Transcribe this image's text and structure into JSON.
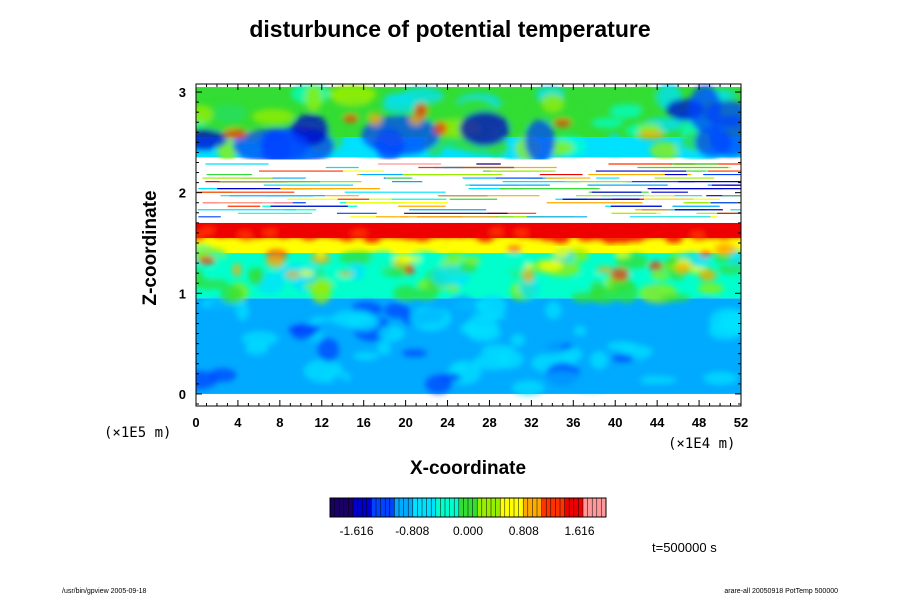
{
  "chart_data": {
    "type": "heatmap",
    "title": "disturbunce of potential temperature",
    "xlabel": "X-coordinate",
    "ylabel": "Z-coordinate",
    "x_unit": "(×1E4 m)",
    "z_unit": "(×1E5 m)",
    "xlim": [
      0,
      52
    ],
    "ylim": [
      0,
      3
    ],
    "x_ticks": [
      0,
      4,
      8,
      12,
      16,
      20,
      24,
      28,
      32,
      36,
      40,
      44,
      48,
      52
    ],
    "y_ticks": [
      0,
      1,
      2,
      3
    ],
    "colorbar": {
      "min": -2.0,
      "max": 2.0,
      "tick_labels": [
        "-1.616",
        "-0.808",
        "0.000",
        "0.808",
        "1.616"
      ],
      "tick_values": [
        -1.616,
        -0.808,
        0.0,
        0.808,
        1.616
      ],
      "colors": [
        "#1a0066",
        "#0000cc",
        "#0044ff",
        "#00aaff",
        "#00e0ff",
        "#00ffcc",
        "#33dd33",
        "#99ee00",
        "#ffff00",
        "#ffaa00",
        "#ff3300",
        "#ee0000",
        "#ff9999"
      ]
    },
    "layers": [
      {
        "z_range": [
          0.0,
          0.95
        ],
        "value": -0.9
      },
      {
        "z_range": [
          0.95,
          1.4
        ],
        "value": -0.2
      },
      {
        "z_range": [
          1.4,
          1.55
        ],
        "value": 0.5
      },
      {
        "z_range": [
          1.55,
          1.7
        ],
        "value": 1.5
      },
      {
        "z_range": [
          1.7,
          2.35
        ],
        "value": null
      },
      {
        "z_range": [
          2.35,
          2.55
        ],
        "value": -0.5
      },
      {
        "z_range": [
          2.55,
          3.05
        ],
        "value": -0.1
      }
    ]
  },
  "annotations": {
    "time": "t=500000 s",
    "footer_left": "/usr/bin/gpview 2005-09-18",
    "footer_right": "arare-all 20050918 PotTemp 500000"
  }
}
